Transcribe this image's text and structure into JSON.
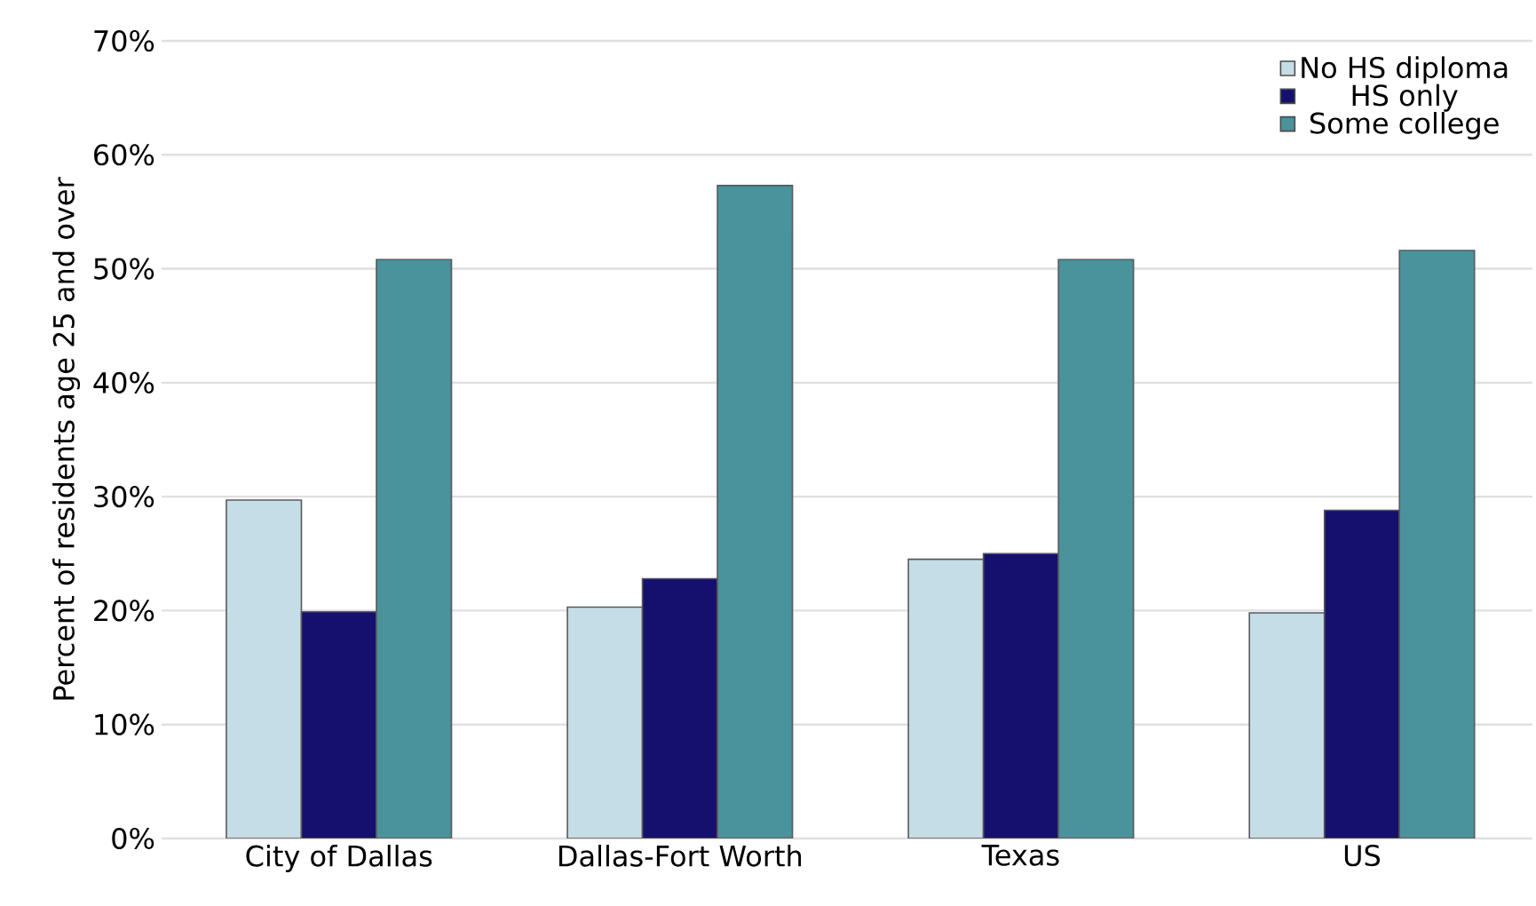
{
  "chart_data": {
    "type": "bar",
    "ylabel": "Percent of residents age 25 and over",
    "categories": [
      "City of Dallas",
      "Dallas-Fort Worth",
      "Texas",
      "US"
    ],
    "series": [
      {
        "name": "No HS diploma",
        "color": "#c5dde6",
        "values": [
          29.7,
          20.3,
          24.5,
          19.8
        ]
      },
      {
        "name": "HS only",
        "color": "#15106e",
        "values": [
          19.9,
          22.8,
          25.0,
          28.8
        ]
      },
      {
        "name": "Some college",
        "color": "#4a929c",
        "values": [
          50.8,
          57.3,
          50.8,
          51.6
        ]
      }
    ],
    "ylim": [
      0,
      70
    ],
    "yticks": [
      {
        "value": 0,
        "label": "0%"
      },
      {
        "value": 10,
        "label": "10%"
      },
      {
        "value": 20,
        "label": "20%"
      },
      {
        "value": 30,
        "label": "30%"
      },
      {
        "value": 40,
        "label": "40%"
      },
      {
        "value": 50,
        "label": "50%"
      },
      {
        "value": 60,
        "label": "60%"
      },
      {
        "value": 70,
        "label": "70%"
      }
    ],
    "grid": "y",
    "legend": "top right"
  }
}
